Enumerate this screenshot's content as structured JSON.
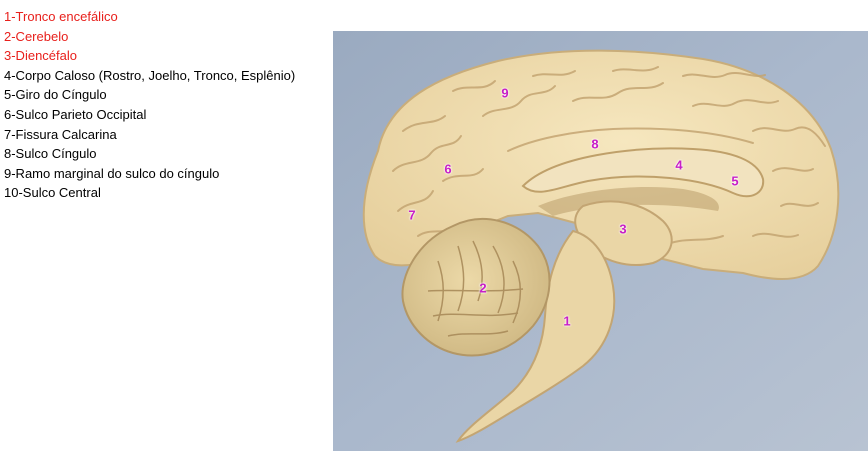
{
  "legend": [
    {
      "text": "1-Tronco encefálico",
      "color": "#e8201c"
    },
    {
      "text": "2-Cerebelo",
      "color": "#e8201c"
    },
    {
      "text": "3-Diencéfalo",
      "color": "#e8201c"
    },
    {
      "text": "4-Corpo Caloso (Rostro, Joelho, Tronco, Esplênio)",
      "color": "#000000"
    },
    {
      "text": "5-Giro do Cíngulo",
      "color": "#000000"
    },
    {
      "text": "6-Sulco Parieto Occipital",
      "color": "#000000"
    },
    {
      "text": "7-Fissura Calcarina",
      "color": "#000000"
    },
    {
      "text": "8-Sulco Cíngulo",
      "color": "#000000"
    },
    {
      "text": "9-Ramo marginal do sulco do cíngulo",
      "color": "#000000"
    },
    {
      "text": "10-Sulco Central",
      "color": "#000000"
    }
  ],
  "markers": {
    "m1": "1",
    "m2": "2",
    "m3": "3",
    "m4": "4",
    "m5": "5",
    "m6": "6",
    "m7": "7",
    "m8": "8",
    "m9": "9"
  },
  "colors": {
    "legend_red": "#e8201c",
    "marker": "#c81ec8",
    "photo_background": "#a3b3c8",
    "brain_tissue": "#efdcae"
  }
}
